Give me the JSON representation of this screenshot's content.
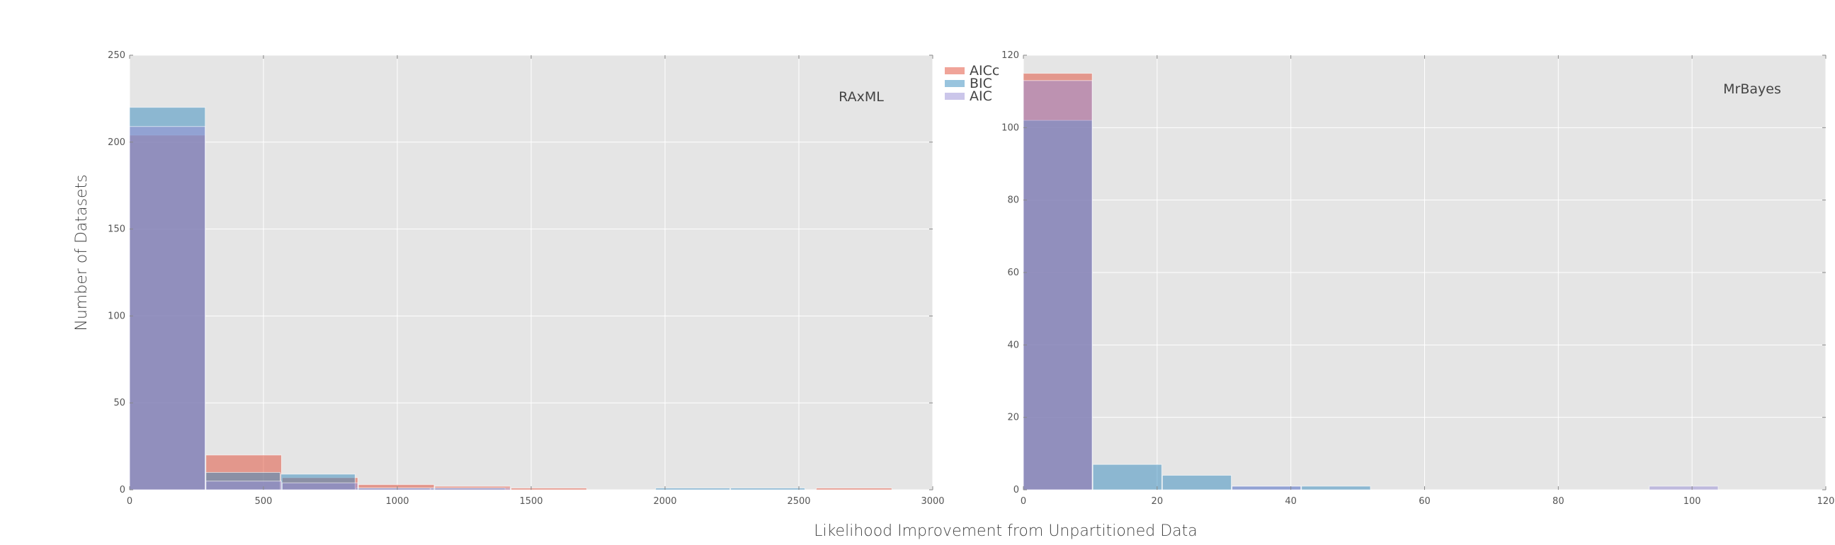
{
  "figure": {
    "xlabel": "Likelihood Improvement from Unpartitioned Data",
    "ylabel": "Number of Datasets"
  },
  "colors": {
    "panel_background": "#e5e5e5",
    "grid": "#ffffff",
    "AICc": "#e24a33",
    "BIC": "#348abd",
    "AIC": "#988ed5"
  },
  "legend": {
    "placement": "right of left panel, top",
    "entries": [
      {
        "label": "AICc",
        "color": "#e24a33"
      },
      {
        "label": "BIC",
        "color": "#348abd"
      },
      {
        "label": "AIC",
        "color": "#988ed5"
      }
    ]
  },
  "chart_data": [
    {
      "type": "histogram",
      "label": "RAxML",
      "xlim": [
        0,
        3000
      ],
      "ylim": [
        0,
        250
      ],
      "xticks": [
        0,
        500,
        1000,
        1500,
        2000,
        2500,
        3000
      ],
      "yticks": [
        0,
        50,
        100,
        150,
        200,
        250
      ],
      "grid": true,
      "series": [
        {
          "name": "AICc",
          "alpha": 0.5,
          "bin_edges": [
            0,
            285,
            570,
            855,
            1140,
            1425,
            1710,
            1995,
            2280,
            2565,
            2850
          ],
          "values": [
            204,
            20,
            7,
            3,
            2,
            1,
            0,
            0,
            0,
            1
          ]
        },
        {
          "name": "BIC",
          "alpha": 0.5,
          "bin_edges": [
            0,
            285,
            565,
            845,
            1125,
            1405,
            1685,
            1965,
            2245,
            2525,
            2805
          ],
          "values": [
            220,
            10,
            9,
            1,
            1,
            0,
            0,
            1,
            1,
            0
          ]
        },
        {
          "name": "AIC",
          "alpha": 0.5,
          "bin_edges": [
            0,
            285,
            570,
            855,
            1140,
            1425,
            1710,
            1995,
            2280,
            2565,
            2850
          ],
          "values": [
            209,
            5,
            4,
            1,
            1,
            0,
            0,
            0,
            0,
            0
          ]
        }
      ]
    },
    {
      "type": "histogram",
      "label": "MrBayes",
      "xlim": [
        0,
        120
      ],
      "ylim": [
        0,
        120
      ],
      "xticks": [
        0,
        20,
        40,
        60,
        80,
        100,
        120
      ],
      "yticks": [
        0,
        20,
        40,
        60,
        80,
        100,
        120
      ],
      "grid": true,
      "series": [
        {
          "name": "AICc",
          "alpha": 0.5,
          "bin_edges": [
            0,
            10.4,
            20.8,
            31.2,
            41.6,
            52,
            62.4,
            72.8,
            83.2,
            93.6,
            104
          ],
          "values": [
            115,
            0,
            0,
            0,
            0,
            0,
            0,
            0,
            0,
            0
          ]
        },
        {
          "name": "BIC",
          "alpha": 0.5,
          "bin_edges": [
            0,
            10.4,
            20.8,
            31.2,
            41.6,
            52,
            62.4,
            72.8,
            83.2,
            93.6,
            104
          ],
          "values": [
            102,
            7,
            4,
            1,
            1,
            0,
            0,
            0,
            0,
            0
          ]
        },
        {
          "name": "AIC",
          "alpha": 0.5,
          "bin_edges": [
            0,
            10.4,
            20.8,
            31.2,
            41.6,
            52,
            62.4,
            72.8,
            83.2,
            93.6,
            104
          ],
          "values": [
            113,
            0,
            0,
            1,
            0,
            0,
            0,
            0,
            0,
            1
          ]
        }
      ]
    }
  ]
}
